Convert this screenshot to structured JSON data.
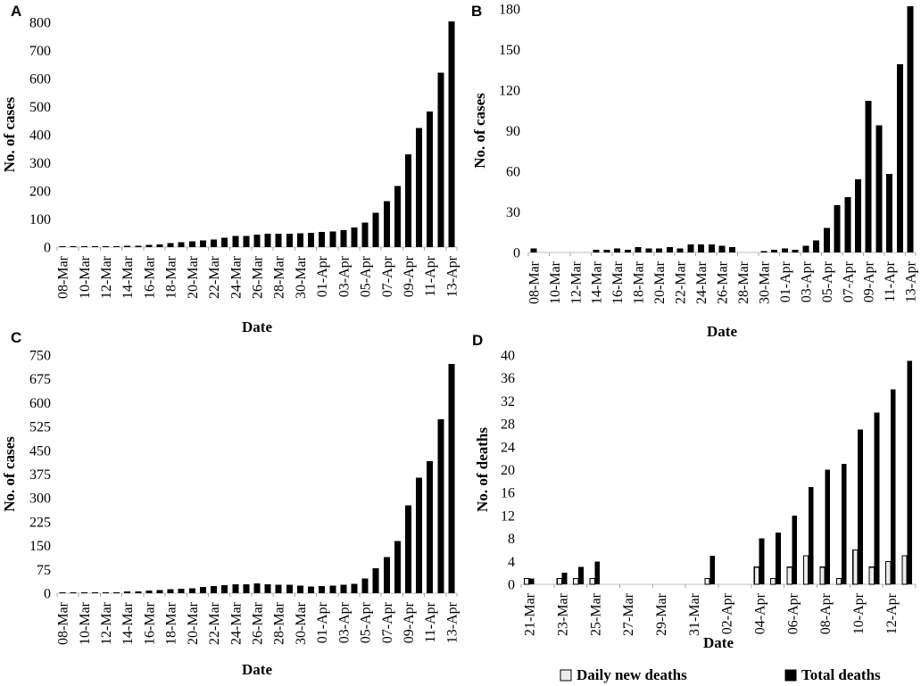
{
  "figure": {
    "background": "#ffffff",
    "text_color": "#000000",
    "axis_line_color": "#bfbfbf",
    "tick_mark_color": "#a8a8a8",
    "bar_color": "#000000",
    "daily_bar_fill": "#ececec",
    "panel_labels": [
      "A",
      "B",
      "C",
      "D"
    ]
  },
  "chart_data": [
    {
      "panel": "A",
      "type": "bar",
      "ylabel": "No. of cases",
      "xlabel": "Date",
      "ylim": [
        0,
        800
      ],
      "y_ticks": [
        0,
        100,
        200,
        300,
        400,
        500,
        600,
        700,
        800
      ],
      "legend_position": "none",
      "grid": false,
      "categories": [
        "08-Mar",
        "09-Mar",
        "10-Mar",
        "11-Mar",
        "12-Mar",
        "13-Mar",
        "14-Mar",
        "15-Mar",
        "16-Mar",
        "17-Mar",
        "18-Mar",
        "19-Mar",
        "20-Mar",
        "21-Mar",
        "22-Mar",
        "23-Mar",
        "24-Mar",
        "25-Mar",
        "26-Mar",
        "27-Mar",
        "28-Mar",
        "29-Mar",
        "30-Mar",
        "31-Mar",
        "01-Apr",
        "02-Apr",
        "03-Apr",
        "04-Apr",
        "05-Apr",
        "06-Apr",
        "07-Apr",
        "08-Apr",
        "09-Apr",
        "10-Apr",
        "11-Apr",
        "12-Apr",
        "13-Apr"
      ],
      "x_tick_labels": [
        "08-Mar",
        "10-Mar",
        "12-Mar",
        "14-Mar",
        "16-Mar",
        "18-Mar",
        "20-Mar",
        "22-Mar",
        "24-Mar",
        "26-Mar",
        "28-Mar",
        "30-Mar",
        "01-Apr",
        "03-Apr",
        "05-Apr",
        "07-Apr",
        "09-Apr",
        "11-Apr",
        "13-Apr"
      ],
      "values": [
        3,
        3,
        3,
        3,
        3,
        3,
        5,
        5,
        8,
        10,
        14,
        17,
        20,
        24,
        27,
        33,
        39,
        39,
        44,
        48,
        48,
        48,
        49,
        51,
        54,
        56,
        61,
        70,
        88,
        123,
        164,
        218,
        330,
        424,
        482,
        621,
        803
      ]
    },
    {
      "panel": "B",
      "type": "bar",
      "ylabel": "No. of cases",
      "xlabel": "Date",
      "ylim": [
        0,
        180
      ],
      "y_ticks": [
        0,
        30,
        60,
        90,
        120,
        150,
        180
      ],
      "legend_position": "none",
      "grid": false,
      "categories": [
        "08-Mar",
        "09-Mar",
        "10-Mar",
        "11-Mar",
        "12-Mar",
        "13-Mar",
        "14-Mar",
        "15-Mar",
        "16-Mar",
        "17-Mar",
        "18-Mar",
        "19-Mar",
        "20-Mar",
        "21-Mar",
        "22-Mar",
        "23-Mar",
        "24-Mar",
        "25-Mar",
        "26-Mar",
        "27-Mar",
        "28-Mar",
        "29-Mar",
        "30-Mar",
        "31-Mar",
        "01-Apr",
        "02-Apr",
        "03-Apr",
        "04-Apr",
        "05-Apr",
        "06-Apr",
        "07-Apr",
        "08-Apr",
        "09-Apr",
        "10-Apr",
        "11-Apr",
        "12-Apr",
        "13-Apr"
      ],
      "x_tick_labels": [
        "08-Mar",
        "10-Mar",
        "12-Mar",
        "14-Mar",
        "16-Mar",
        "18-Mar",
        "20-Mar",
        "22-Mar",
        "24-Mar",
        "26-Mar",
        "28-Mar",
        "30-Mar",
        "01-Apr",
        "03-Apr",
        "05-Apr",
        "07-Apr",
        "09-Apr",
        "11-Apr",
        "13-Apr"
      ],
      "values": [
        3,
        0,
        0,
        0,
        0,
        0,
        2,
        2,
        3,
        2,
        4,
        3,
        3,
        4,
        3,
        6,
        6,
        6,
        5,
        4,
        0,
        0,
        1,
        2,
        3,
        2,
        5,
        9,
        18,
        35,
        41,
        54,
        112,
        94,
        58,
        139,
        182
      ]
    },
    {
      "panel": "C",
      "type": "bar",
      "ylabel": "No. of cases",
      "xlabel": "Date",
      "ylim": [
        0,
        750
      ],
      "y_ticks": [
        0,
        75,
        150,
        225,
        300,
        375,
        450,
        525,
        600,
        675,
        750
      ],
      "legend_position": "none",
      "grid": false,
      "categories": [
        "08-Mar",
        "09-Mar",
        "10-Mar",
        "11-Mar",
        "12-Mar",
        "13-Mar",
        "14-Mar",
        "15-Mar",
        "16-Mar",
        "17-Mar",
        "18-Mar",
        "19-Mar",
        "20-Mar",
        "21-Mar",
        "22-Mar",
        "23-Mar",
        "24-Mar",
        "25-Mar",
        "26-Mar",
        "27-Mar",
        "28-Mar",
        "29-Mar",
        "30-Mar",
        "31-Mar",
        "01-Apr",
        "02-Apr",
        "03-Apr",
        "04-Apr",
        "05-Apr",
        "06-Apr",
        "07-Apr",
        "08-Apr",
        "09-Apr",
        "10-Apr",
        "11-Apr",
        "12-Apr",
        "13-Apr"
      ],
      "x_tick_labels": [
        "08-Mar",
        "10-Mar",
        "12-Mar",
        "14-Mar",
        "16-Mar",
        "18-Mar",
        "20-Mar",
        "22-Mar",
        "24-Mar",
        "26-Mar",
        "28-Mar",
        "30-Mar",
        "01-Apr",
        "03-Apr",
        "05-Apr",
        "07-Apr",
        "09-Apr",
        "11-Apr",
        "13-Apr"
      ],
      "values": [
        3,
        3,
        3,
        3,
        3,
        3,
        5,
        5,
        8,
        10,
        12,
        14,
        16,
        19,
        22,
        25,
        28,
        28,
        31,
        28,
        27,
        26,
        24,
        21,
        23,
        24,
        26,
        29,
        46,
        78,
        114,
        165,
        276,
        364,
        416,
        548,
        722
      ]
    },
    {
      "panel": "D",
      "type": "bar",
      "grouped": true,
      "ylabel": "No. of deaths",
      "xlabel": "Date",
      "ylim": [
        0,
        40
      ],
      "y_ticks": [
        0,
        4,
        8,
        12,
        16,
        20,
        24,
        28,
        32,
        36,
        40
      ],
      "grid": false,
      "categories": [
        "21-Mar",
        "22-Mar",
        "23-Mar",
        "24-Mar",
        "25-Mar",
        "26-Mar",
        "27-Mar",
        "28-Mar",
        "29-Mar",
        "30-Mar",
        "31-Mar",
        "01-Apr",
        "02-Apr",
        "03-Apr",
        "04-Apr",
        "05-Apr",
        "06-Apr",
        "07-Apr",
        "08-Apr",
        "09-Apr",
        "10-Apr",
        "11-Apr",
        "12-Apr",
        "13-Apr"
      ],
      "x_tick_labels": [
        "21-Mar",
        "23-Mar",
        "25-Mar",
        "27-Mar",
        "29-Mar",
        "31-Mar",
        "02-Apr",
        "04-Apr",
        "06-Apr",
        "08-Apr",
        "10-Apr",
        "12-Apr"
      ],
      "series": [
        {
          "name": "Daily new deaths",
          "fill": "#ececec",
          "stroke": "#000000",
          "values": [
            1,
            0,
            1,
            1,
            1,
            0,
            0,
            0,
            0,
            0,
            0,
            1,
            0,
            0,
            3,
            1,
            3,
            5,
            3,
            1,
            6,
            3,
            4,
            5
          ]
        },
        {
          "name": "Total deaths",
          "fill": "#000000",
          "stroke": "#000000",
          "values": [
            1,
            0,
            2,
            3,
            4,
            0,
            0,
            0,
            0,
            0,
            0,
            5,
            0,
            0,
            8,
            9,
            12,
            17,
            20,
            21,
            27,
            30,
            34,
            39
          ]
        }
      ],
      "legend": {
        "position": "bottom",
        "items": [
          "Daily new deaths",
          "Total deaths"
        ]
      }
    }
  ]
}
